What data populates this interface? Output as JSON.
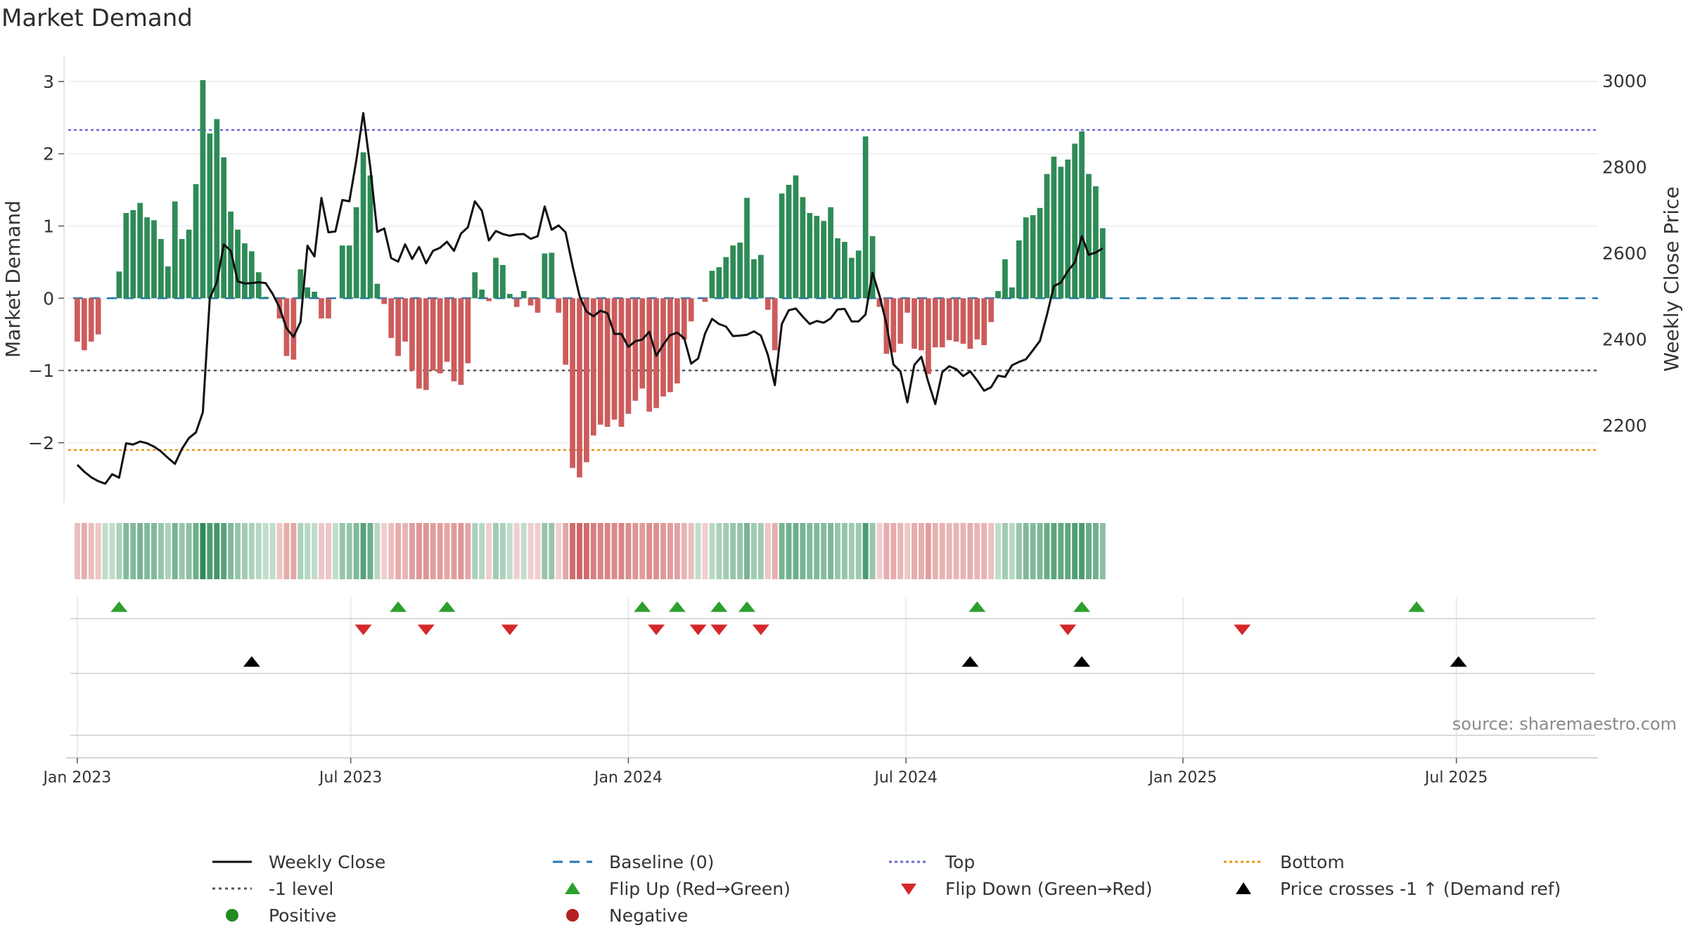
{
  "title": "Market Demand",
  "source": "source: sharemaestro.com",
  "colors": {
    "positive": "#2e8b57",
    "negative": "#cd5c5c",
    "close": "#111111",
    "baseline": "#1f77b4",
    "top": "#6a6ad8",
    "bottom": "#e8940f",
    "minus_one": "#555555",
    "flip_up": "#2ca02c",
    "flip_down": "#d62728",
    "cross": "#000000",
    "pos_dot": "#228b22",
    "neg_dot": "#b22222"
  },
  "legend": [
    {
      "key": "close",
      "label": "Weekly Close"
    },
    {
      "key": "baseline",
      "label": "Baseline (0)"
    },
    {
      "key": "top",
      "label": "Top"
    },
    {
      "key": "bottom",
      "label": "Bottom"
    },
    {
      "key": "minus_one",
      "label": "-1 level"
    },
    {
      "key": "flip_up",
      "label": "Flip Up (Red→Green)"
    },
    {
      "key": "flip_down",
      "label": "Flip Down (Green→Red)"
    },
    {
      "key": "cross",
      "label": "Price crosses -1 ↑ (Demand ref)"
    },
    {
      "key": "pos_dot",
      "label": "Positive"
    },
    {
      "key": "neg_dot",
      "label": "Negative"
    }
  ],
  "chart_data": {
    "type": "bar",
    "title": "Market Demand",
    "ylabel": "Market Demand",
    "y2label": "Weekly Close Price",
    "ylim": [
      -2.8,
      3.35
    ],
    "y2lim": [
      2025,
      3057
    ],
    "yticks": [
      -2,
      -1,
      0,
      1,
      2,
      3
    ],
    "y2ticks": [
      2200,
      2400,
      2600,
      2800,
      3000
    ],
    "xlim": [
      -1.3,
      218
    ],
    "date_ticks": [
      {
        "week": 0,
        "label": "Jan 2023"
      },
      {
        "week": 39.2,
        "label": "Jul 2023"
      },
      {
        "week": 79,
        "label": "Jan 2024"
      },
      {
        "week": 118.8,
        "label": "Jul 2024"
      },
      {
        "week": 158.5,
        "label": "Jan 2025"
      },
      {
        "week": 197.7,
        "label": "Jul 2025"
      }
    ],
    "reference_lines": {
      "baseline": 0,
      "top": 2.33,
      "bottom": -2.1,
      "minus_one": -1
    },
    "demand": [
      -0.6,
      -0.72,
      -0.6,
      -0.5,
      0,
      0,
      0.37,
      1.18,
      1.22,
      1.32,
      1.12,
      1.08,
      0.82,
      0.44,
      1.34,
      0.82,
      0.95,
      1.58,
      3.02,
      2.28,
      2.48,
      1.95,
      1.2,
      0.95,
      0.76,
      0.65,
      0.36,
      0.02,
      0,
      -0.28,
      -0.8,
      -0.85,
      0.4,
      0.15,
      0.09,
      -0.28,
      -0.28,
      0,
      0.73,
      0.73,
      1.26,
      2.02,
      1.7,
      0.2,
      -0.08,
      -0.55,
      -0.8,
      -0.6,
      -1.0,
      -1.25,
      -1.27,
      -1.0,
      -1.04,
      -0.88,
      -1.15,
      -1.2,
      -0.9,
      0.36,
      0.12,
      -0.04,
      0.56,
      0.46,
      0.06,
      -0.12,
      0.1,
      -0.1,
      -0.2,
      0.62,
      0.63,
      -0.2,
      -0.92,
      -2.35,
      -2.48,
      -2.27,
      -1.9,
      -1.75,
      -1.78,
      -1.68,
      -1.78,
      -1.6,
      -1.42,
      -1.25,
      -1.57,
      -1.52,
      -1.36,
      -1.3,
      -1.18,
      -0.57,
      -0.32,
      0,
      -0.05,
      0.38,
      0.43,
      0.57,
      0.73,
      0.77,
      1.39,
      0.54,
      0.6,
      -0.16,
      -0.72,
      1.45,
      1.57,
      1.7,
      1.4,
      1.18,
      1.14,
      1.07,
      1.26,
      0.83,
      0.78,
      0.56,
      0.66,
      2.24,
      0.86,
      -0.12,
      -0.77,
      -0.75,
      -0.63,
      -0.2,
      -0.7,
      -0.72,
      -1.05,
      -0.68,
      -0.68,
      -0.58,
      -0.6,
      -0.63,
      -0.7,
      -0.57,
      -0.65,
      -0.33,
      0.1,
      0.54,
      0.15,
      0.8,
      1.12,
      1.15,
      1.25,
      1.72,
      1.96,
      1.82,
      1.92,
      2.14,
      2.31,
      1.72,
      1.55,
      0.97
    ],
    "weekly_close": [
      2108,
      2092,
      2079,
      2070,
      2064,
      2086,
      2078,
      2158,
      2155,
      2162,
      2158,
      2150,
      2139,
      2124,
      2110,
      2145,
      2170,
      2183,
      2230,
      2495,
      2532,
      2620,
      2605,
      2534,
      2529,
      2530,
      2532,
      2530,
      2505,
      2473,
      2425,
      2405,
      2440,
      2617,
      2592,
      2728,
      2648,
      2650,
      2723,
      2720,
      2815,
      2925,
      2800,
      2649,
      2657,
      2588,
      2580,
      2620,
      2586,
      2614,
      2576,
      2605,
      2612,
      2626,
      2605,
      2645,
      2660,
      2720,
      2698,
      2629,
      2651,
      2644,
      2640,
      2643,
      2644,
      2633,
      2639,
      2708,
      2654,
      2664,
      2648,
      2570,
      2500,
      2464,
      2453,
      2466,
      2460,
      2412,
      2412,
      2382,
      2395,
      2399,
      2417,
      2361,
      2387,
      2409,
      2415,
      2402,
      2343,
      2355,
      2413,
      2447,
      2435,
      2429,
      2407,
      2408,
      2410,
      2418,
      2408,
      2363,
      2293,
      2435,
      2467,
      2471,
      2452,
      2435,
      2442,
      2438,
      2448,
      2469,
      2470,
      2441,
      2441,
      2457,
      2554,
      2501,
      2435,
      2341,
      2325,
      2253,
      2340,
      2359,
      2300,
      2249,
      2323,
      2337,
      2330,
      2314,
      2325,
      2304,
      2280,
      2288,
      2315,
      2312,
      2339,
      2347,
      2353,
      2374,
      2396,
      2456,
      2523,
      2531,
      2558,
      2578,
      2639,
      2596,
      2601,
      2611
    ],
    "band_intensity": [
      0.4,
      0.5,
      0.4,
      0.35,
      0.3,
      0.3,
      0.4,
      0.6,
      0.6,
      0.65,
      0.6,
      0.6,
      0.5,
      0.4,
      0.65,
      0.5,
      0.55,
      0.7,
      1.0,
      0.85,
      0.9,
      0.8,
      0.6,
      0.5,
      0.45,
      0.4,
      0.35,
      0.3,
      0.3,
      0.35,
      0.5,
      0.55,
      0.4,
      0.35,
      0.3,
      0.35,
      0.35,
      0.3,
      0.5,
      0.5,
      0.6,
      0.8,
      0.7,
      0.35,
      0.3,
      0.4,
      0.5,
      0.45,
      0.6,
      0.65,
      0.65,
      0.6,
      0.6,
      0.55,
      0.6,
      0.65,
      0.55,
      0.4,
      0.35,
      0.3,
      0.45,
      0.4,
      0.3,
      0.3,
      0.3,
      0.3,
      0.3,
      0.5,
      0.5,
      0.3,
      0.55,
      0.9,
      0.95,
      0.9,
      0.8,
      0.75,
      0.75,
      0.72,
      0.75,
      0.7,
      0.65,
      0.6,
      0.7,
      0.68,
      0.62,
      0.6,
      0.58,
      0.45,
      0.4,
      0.3,
      0.3,
      0.35,
      0.4,
      0.45,
      0.5,
      0.5,
      0.65,
      0.45,
      0.45,
      0.35,
      0.5,
      0.65,
      0.68,
      0.7,
      0.65,
      0.6,
      0.6,
      0.58,
      0.62,
      0.5,
      0.5,
      0.45,
      0.48,
      0.85,
      0.5,
      0.3,
      0.5,
      0.5,
      0.45,
      0.35,
      0.5,
      0.5,
      0.6,
      0.48,
      0.48,
      0.45,
      0.45,
      0.46,
      0.5,
      0.45,
      0.46,
      0.38,
      0.3,
      0.45,
      0.35,
      0.5,
      0.6,
      0.6,
      0.62,
      0.72,
      0.78,
      0.75,
      0.77,
      0.83,
      0.86,
      0.72,
      0.68,
      0.55
    ],
    "flip_up": [
      6,
      46,
      53,
      81,
      86,
      92,
      96,
      129,
      144,
      192
    ],
    "flip_down": [
      41,
      50,
      62,
      83,
      89,
      92,
      98,
      142,
      167
    ],
    "price_cross": [
      25,
      128,
      144,
      198
    ]
  }
}
